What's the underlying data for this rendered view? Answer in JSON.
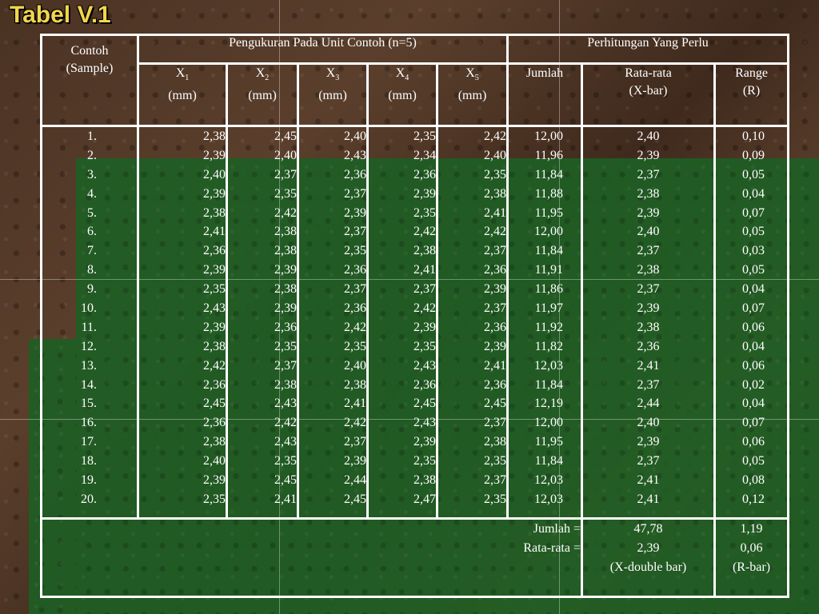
{
  "title": "Tabel V.1",
  "headers": {
    "contoh": "Contoh",
    "sample": "(Sample)",
    "pengukuran": "Pengukuran Pada Unit Contoh (n=5)",
    "perhitungan": "Perhitungan Yang Perlu",
    "x_cols": [
      {
        "x": "X",
        "sub": "1",
        "unit": "(mm)"
      },
      {
        "x": "X",
        "sub": "2",
        "unit": "(mm)"
      },
      {
        "x": "X",
        "sub": "3",
        "unit": "(mm)"
      },
      {
        "x": "X",
        "sub": "4",
        "unit": "(mm)"
      },
      {
        "x": "X",
        "sub": "5",
        "unit": "(mm)"
      }
    ],
    "jumlah": "Jumlah",
    "ratarata": "Rata-rata",
    "xbar": "(X-bar)",
    "range": "Range",
    "r": "(R)"
  },
  "rows": [
    [
      "1.",
      "2,38",
      "2,45",
      "2,40",
      "2,35",
      "2,42",
      "12,00",
      "2,40",
      "0,10"
    ],
    [
      "2.",
      "2,39",
      "2,40",
      "2,43",
      "2,34",
      "2,40",
      "11,96",
      "2,39",
      "0,09"
    ],
    [
      "3.",
      "2,40",
      "2,37",
      "2,36",
      "2,36",
      "2,35",
      "11,84",
      "2,37",
      "0,05"
    ],
    [
      "4.",
      "2,39",
      "2,35",
      "2,37",
      "2,39",
      "2,38",
      "11,88",
      "2,38",
      "0,04"
    ],
    [
      "5.",
      "2,38",
      "2,42",
      "2,39",
      "2,35",
      "2,41",
      "11,95",
      "2,39",
      "0,07"
    ],
    [
      "6.",
      "2,41",
      "2,38",
      "2,37",
      "2,42",
      "2,42",
      "12,00",
      "2,40",
      "0,05"
    ],
    [
      "7.",
      "2,36",
      "2,38",
      "2,35",
      "2,38",
      "2,37",
      "11,84",
      "2,37",
      "0,03"
    ],
    [
      "8.",
      "2,39",
      "2,39",
      "2,36",
      "2,41",
      "2,36",
      "11,91",
      "2,38",
      "0,05"
    ],
    [
      "9.",
      "2,35",
      "2,38",
      "2,37",
      "2,37",
      "2,39",
      "11,86",
      "2,37",
      "0,04"
    ],
    [
      "10.",
      "2,43",
      "2,39",
      "2,36",
      "2,42",
      "2,37",
      "11,97",
      "2,39",
      "0,07"
    ],
    [
      "11.",
      "2,39",
      "2,36",
      "2,42",
      "2,39",
      "2,36",
      "11,92",
      "2,38",
      "0,06"
    ],
    [
      "12.",
      "2,38",
      "2,35",
      "2,35",
      "2,35",
      "2,39",
      "11,82",
      "2,36",
      "0,04"
    ],
    [
      "13.",
      "2,42",
      "2,37",
      "2,40",
      "2,43",
      "2,41",
      "12,03",
      "2,41",
      "0,06"
    ],
    [
      "14.",
      "2,36",
      "2,38",
      "2,38",
      "2,36",
      "2,36",
      "11,84",
      "2,37",
      "0,02"
    ],
    [
      "15.",
      "2,45",
      "2,43",
      "2,41",
      "2,45",
      "2,45",
      "12,19",
      "2,44",
      "0,04"
    ],
    [
      "16.",
      "2,36",
      "2,42",
      "2,42",
      "2,43",
      "2,37",
      "12,00",
      "2,40",
      "0,07"
    ],
    [
      "17.",
      "2,38",
      "2,43",
      "2,37",
      "2,39",
      "2,38",
      "11,95",
      "2,39",
      "0,06"
    ],
    [
      "18.",
      "2,40",
      "2,35",
      "2,39",
      "2,35",
      "2,35",
      "11,84",
      "2,37",
      "0,05"
    ],
    [
      "19.",
      "2,39",
      "2,45",
      "2,44",
      "2,38",
      "2,37",
      "12,03",
      "2,41",
      "0,08"
    ],
    [
      "20.",
      "2,35",
      "2,41",
      "2,45",
      "2,47",
      "2,35",
      "12,03",
      "2,41",
      "0,12"
    ]
  ],
  "footer": {
    "jumlah_label": "Jumlah =",
    "ratarata_label": "Rata-rata =",
    "sum_xbar": "47,78",
    "avg_xbar": "2,39",
    "xdoublebar": "(X-double bar)",
    "sum_r": "1,19",
    "avg_r": "0,06",
    "rbar": "(R-bar)"
  }
}
